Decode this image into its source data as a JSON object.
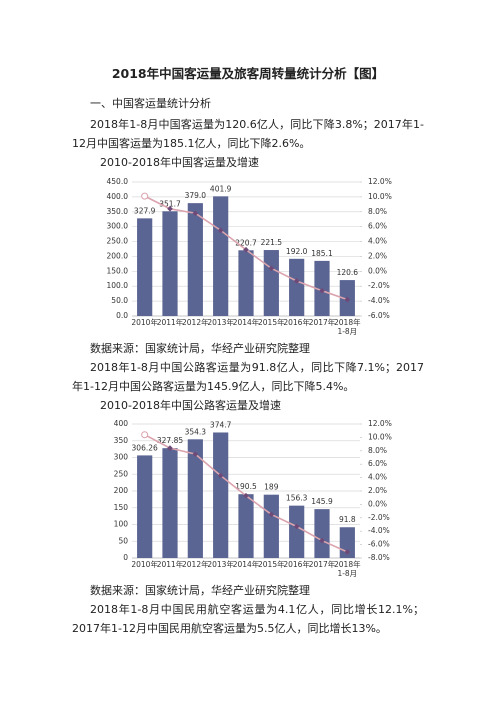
{
  "title": "2018年中国客运量及旅客周转量统计分析【图】",
  "section": "一、中国客运量统计分析",
  "paragraphs": [
    "2018年1-8月中国客运量为120.6亿人，同比下降3.8%；2017年1-12月中国客运量为185.1亿人，同比下降2.6%。",
    "2018年1-8月中国公路客运量为91.8亿人，同比下降7.1%；2017年1-12月中国公路客运量为145.9亿人，同比下降5.4%。",
    "2018年1-8月中国民用航空客运量为4.1亿人，同比增长12.1%；2017年1-12月中国民用航空客运量为5.5亿人，同比增长13%。"
  ],
  "sources": [
    "数据来源：国家统计局，华经产业研究院整理",
    "数据来源：国家统计局，华经产业研究院整理"
  ],
  "chart_data": [
    {
      "type": "bar",
      "title": "2010-2018年中国客运量及增速",
      "categories": [
        "2010年",
        "2011年",
        "2012年",
        "2013年",
        "2014年",
        "2015年",
        "2016年",
        "2017年",
        "2018年1-8月"
      ],
      "series": [
        {
          "type": "bar",
          "color": "#5b6593",
          "values": [
            327.9,
            351.7,
            379.0,
            401.9,
            220.7,
            221.5,
            192.0,
            185.1,
            120.6
          ],
          "value_labels": [
            "327.9",
            "351.7",
            "379.0",
            "401.9",
            "220.7",
            "221.5",
            "192.0",
            "185.1",
            "120.6"
          ]
        },
        {
          "type": "line",
          "axis": "y2",
          "color": "#dba3ad",
          "values": [
            10.1,
            8.4,
            7.8,
            5.5,
            2.9,
            0.4,
            -1.3,
            -2.6,
            -3.8
          ]
        }
      ],
      "ylim": [
        0,
        450
      ],
      "yticks": [
        {
          "value": 0,
          "label": "0.0"
        },
        {
          "value": 50,
          "label": "50.0"
        },
        {
          "value": 100,
          "label": "100.0"
        },
        {
          "value": 150,
          "label": "150.0"
        },
        {
          "value": 200,
          "label": "200.0"
        },
        {
          "value": 250,
          "label": "250.0"
        },
        {
          "value": 300,
          "label": "300.0"
        },
        {
          "value": 350,
          "label": "350.0"
        },
        {
          "value": 400,
          "label": "400.0"
        },
        {
          "value": 450,
          "label": "450.0"
        }
      ],
      "y2lim": [
        -6,
        12
      ],
      "y2ticks": [
        {
          "value": -6,
          "label": "-6.0%"
        },
        {
          "value": -4,
          "label": "-4.0%"
        },
        {
          "value": -2,
          "label": "-2.0%"
        },
        {
          "value": 0,
          "label": "0.0%"
        },
        {
          "value": 2,
          "label": "2.0%"
        },
        {
          "value": 4,
          "label": "4.0%"
        },
        {
          "value": 6,
          "label": "6.0%"
        },
        {
          "value": 8,
          "label": "8.0%"
        },
        {
          "value": 10,
          "label": "10.0%"
        },
        {
          "value": 12,
          "label": "12.0%"
        }
      ],
      "grid": true
    },
    {
      "type": "bar",
      "title": "2010-2018年中国公路客运量及增速",
      "categories": [
        "2010年",
        "2011年",
        "2012年",
        "2013年",
        "2014年",
        "2015年",
        "2016年",
        "2017年",
        "2018年1-8月"
      ],
      "series": [
        {
          "type": "bar",
          "color": "#5b6593",
          "values": [
            306.26,
            327.85,
            354.3,
            374.7,
            190.5,
            189,
            156.3,
            145.9,
            91.8
          ]
        },
        {
          "type": "line",
          "axis": "y2",
          "color": "#dba3ad",
          "values": [
            10.4,
            8.4,
            7.5,
            4.3,
            1.3,
            -1.5,
            -3.3,
            -5.4,
            -7.1
          ]
        }
      ],
      "ylim": [
        0,
        400
      ],
      "yticks": [
        0,
        50,
        100,
        150,
        200,
        250,
        300,
        350,
        400
      ],
      "y2lim": [
        -8,
        12
      ],
      "y2ticks": [
        {
          "value": -8,
          "label": "-8.0%"
        },
        {
          "value": -6,
          "label": "-6.0%"
        },
        {
          "value": -4,
          "label": "-4.0%"
        },
        {
          "value": -2,
          "label": "-2.0%"
        },
        {
          "value": 0,
          "label": "0.0%"
        },
        {
          "value": 2,
          "label": "2.0%"
        },
        {
          "value": 4,
          "label": "4.0%"
        },
        {
          "value": 6,
          "label": "6.0%"
        },
        {
          "value": 8,
          "label": "8.0%"
        },
        {
          "value": 10,
          "label": "10.0%"
        },
        {
          "value": 12,
          "label": "12.0%"
        }
      ],
      "grid": true
    }
  ]
}
